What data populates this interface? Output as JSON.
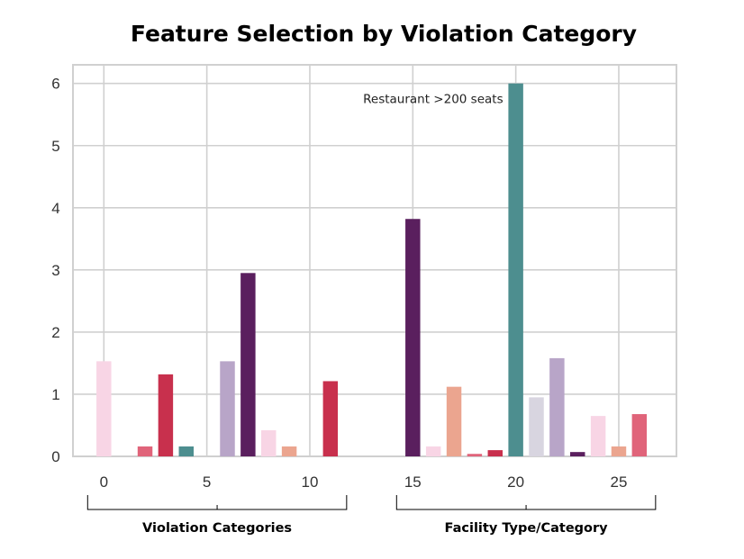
{
  "chart_data": {
    "type": "bar",
    "title": "Feature Selection by Violation Category",
    "xlabel": "",
    "ylabel": "",
    "xlim": [
      -1.5,
      27.8
    ],
    "ylim": [
      0,
      6.3
    ],
    "x_ticks": [
      0,
      5,
      10,
      15,
      20,
      25
    ],
    "y_ticks": [
      0,
      1,
      2,
      3,
      4,
      5,
      6
    ],
    "grid": true,
    "bars": [
      {
        "x": 0,
        "value": 1.53,
        "color": "#f8d5e5"
      },
      {
        "x": 1,
        "value": 0.0,
        "color": "#f8d5e5"
      },
      {
        "x": 2,
        "value": 0.16,
        "color": "#e0647a"
      },
      {
        "x": 3,
        "value": 1.32,
        "color": "#c8304d"
      },
      {
        "x": 4,
        "value": 0.16,
        "color": "#4d8e8f"
      },
      {
        "x": 5,
        "value": 0.0,
        "color": "#4d8e8f"
      },
      {
        "x": 6,
        "value": 1.53,
        "color": "#b8a5c8"
      },
      {
        "x": 7,
        "value": 2.95,
        "color": "#5a1f5e"
      },
      {
        "x": 8,
        "value": 0.42,
        "color": "#f8d5e5"
      },
      {
        "x": 9,
        "value": 0.16,
        "color": "#eba58f"
      },
      {
        "x": 10,
        "value": 0.0,
        "color": "#eba58f"
      },
      {
        "x": 11,
        "value": 1.21,
        "color": "#c8304d"
      },
      {
        "x": 12,
        "value": 0.0,
        "color": "#c8304d"
      },
      {
        "x": 13,
        "value": 0.0,
        "color": "#c8304d"
      },
      {
        "x": 14,
        "value": 0.0,
        "color": "#c8304d"
      },
      {
        "x": 15,
        "value": 3.82,
        "color": "#5a1f5e"
      },
      {
        "x": 16,
        "value": 0.16,
        "color": "#f8d5e5"
      },
      {
        "x": 17,
        "value": 1.12,
        "color": "#eba58f"
      },
      {
        "x": 18,
        "value": 0.04,
        "color": "#e0647a"
      },
      {
        "x": 19,
        "value": 0.1,
        "color": "#c8304d"
      },
      {
        "x": 20,
        "value": 6.0,
        "color": "#4d8e8f"
      },
      {
        "x": 21,
        "value": 0.95,
        "color": "#d8d5e0"
      },
      {
        "x": 22,
        "value": 1.58,
        "color": "#b8a5c8"
      },
      {
        "x": 23,
        "value": 0.07,
        "color": "#5a1f5e"
      },
      {
        "x": 24,
        "value": 0.65,
        "color": "#f8d5e5"
      },
      {
        "x": 25,
        "value": 0.16,
        "color": "#eba58f"
      },
      {
        "x": 26,
        "value": 0.68,
        "color": "#e0647a"
      }
    ],
    "annotations": [
      {
        "text": "Restaurant >200 seats",
        "x": 20,
        "y": 6.0
      }
    ],
    "groups": [
      {
        "label": "Violation Categories",
        "from": 0,
        "to": 11
      },
      {
        "label": "Facility Type/Category",
        "from": 15,
        "to": 26
      }
    ]
  }
}
